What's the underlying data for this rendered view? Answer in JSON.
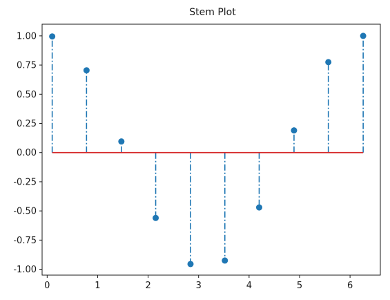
{
  "chart_data": {
    "type": "stem",
    "title": "Stem Plot",
    "xlabel": "",
    "ylabel": "",
    "xlim": [
      -0.1,
      6.6
    ],
    "ylim": [
      -1.05,
      1.1
    ],
    "x_ticks": [
      0,
      1,
      2,
      3,
      4,
      5,
      6
    ],
    "y_ticks": [
      1.0,
      0.75,
      0.5,
      0.25,
      0.0,
      -0.25,
      -0.5,
      -0.75,
      -1.0
    ],
    "y_tick_labels": [
      "1.00",
      "0.75",
      "0.50",
      "0.25",
      "0.00",
      "-0.25",
      "-0.50",
      "-0.75",
      "-1.00"
    ],
    "baseline": 0,
    "grid": false,
    "colors": {
      "stem": "#1f77b4",
      "marker": "#1f77b4",
      "baseline": "#d62728",
      "axis": "#1a1a1a"
    },
    "x": [
      0.1,
      0.78,
      1.47,
      2.15,
      2.84,
      3.52,
      4.2,
      4.89,
      5.57,
      6.26
    ],
    "y": [
      0.995,
      0.705,
      0.095,
      -0.56,
      -0.955,
      -0.925,
      -0.47,
      0.19,
      0.775,
      1.0
    ]
  }
}
